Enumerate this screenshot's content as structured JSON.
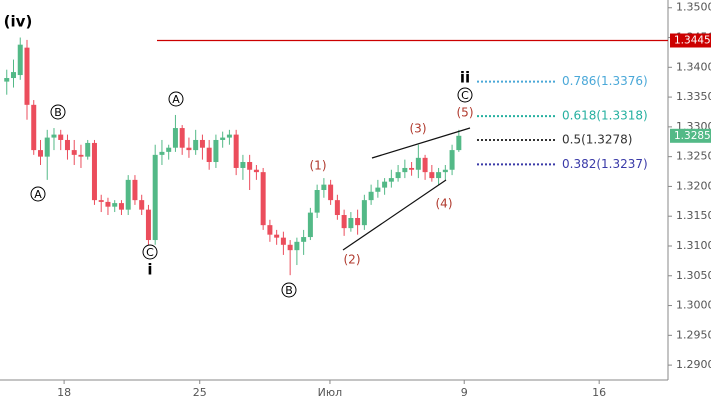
{
  "chart_data": {
    "type": "candlestick",
    "x": [
      1,
      2,
      3,
      4,
      5,
      6,
      7,
      8,
      9,
      10,
      11,
      12,
      13,
      14,
      15,
      16,
      17,
      18,
      19,
      20,
      21,
      22,
      23,
      24,
      25,
      26,
      27,
      28,
      29,
      30,
      31,
      32,
      33,
      34,
      35,
      36,
      37,
      38,
      39,
      40,
      41,
      42,
      43,
      44,
      45,
      46,
      47,
      48,
      49,
      50,
      51,
      52,
      53,
      54,
      55,
      56,
      57,
      58,
      59,
      60,
      61,
      62,
      63,
      64,
      65,
      66,
      67,
      68
    ],
    "open": [
      1.3376,
      1.3382,
      1.3387,
      1.3433,
      1.3337,
      1.3261,
      1.325,
      1.3282,
      1.3287,
      1.3278,
      1.3261,
      1.3253,
      1.325,
      1.3273,
      1.3177,
      1.3174,
      1.3166,
      1.3172,
      1.3161,
      1.3211,
      1.3177,
      1.3161,
      1.311,
      1.3253,
      1.3258,
      1.3265,
      1.3298,
      1.3265,
      1.3261,
      1.3278,
      1.3265,
      1.3241,
      1.3278,
      1.3282,
      1.3287,
      1.3231,
      1.3241,
      1.3228,
      1.3224,
      1.3135,
      1.3119,
      1.3114,
      1.3102,
      1.3093,
      1.3107,
      1.3115,
      1.3156,
      1.3194,
      1.3203,
      1.3177,
      1.3152,
      1.313,
      1.3147,
      1.3135,
      1.3177,
      1.3191,
      1.3198,
      1.3208,
      1.3214,
      1.3224,
      1.3231,
      1.3228,
      1.3248,
      1.3224,
      1.3214,
      1.3224,
      1.3228,
      1.3261
    ],
    "high": [
      1.3396,
      1.3413,
      1.345,
      1.3446,
      1.3345,
      1.3278,
      1.3295,
      1.3298,
      1.3295,
      1.3287,
      1.3278,
      1.327,
      1.3278,
      1.3278,
      1.3186,
      1.3181,
      1.3177,
      1.3177,
      1.3219,
      1.3219,
      1.3186,
      1.3169,
      1.327,
      1.3278,
      1.327,
      1.332,
      1.3303,
      1.3282,
      1.3295,
      1.3287,
      1.3278,
      1.3287,
      1.3292,
      1.3295,
      1.3295,
      1.3253,
      1.3253,
      1.3236,
      1.3231,
      1.3144,
      1.3127,
      1.3124,
      1.311,
      1.3114,
      1.3127,
      1.3164,
      1.3203,
      1.3214,
      1.3211,
      1.3186,
      1.3161,
      1.3157,
      1.3161,
      1.3186,
      1.3203,
      1.3211,
      1.3214,
      1.3228,
      1.3236,
      1.3245,
      1.3241,
      1.327,
      1.3253,
      1.3236,
      1.3231,
      1.3236,
      1.327,
      1.3295
    ],
    "low": [
      1.3354,
      1.3366,
      1.3379,
      1.3312,
      1.3253,
      1.3236,
      1.3211,
      1.3261,
      1.3261,
      1.3245,
      1.3236,
      1.3231,
      1.3245,
      1.3169,
      1.3157,
      1.3152,
      1.3157,
      1.3152,
      1.3152,
      1.3169,
      1.3152,
      1.3097,
      1.3102,
      1.3236,
      1.3245,
      1.3258,
      1.3253,
      1.3248,
      1.3253,
      1.3245,
      1.3228,
      1.3231,
      1.3265,
      1.327,
      1.3219,
      1.3211,
      1.3194,
      1.3211,
      1.3127,
      1.3107,
      1.3102,
      1.3085,
      1.3051,
      1.3068,
      1.3085,
      1.311,
      1.3147,
      1.3181,
      1.3169,
      1.3144,
      1.3117,
      1.3124,
      1.3119,
      1.3127,
      1.3169,
      1.3181,
      1.3186,
      1.3198,
      1.3208,
      1.3214,
      1.3218,
      1.3214,
      1.3211,
      1.3208,
      1.3203,
      1.3211,
      1.3219,
      1.3258
    ],
    "close": [
      1.3382,
      1.3392,
      1.3438,
      1.3337,
      1.3261,
      1.325,
      1.3282,
      1.3287,
      1.3278,
      1.3261,
      1.3253,
      1.325,
      1.3273,
      1.3177,
      1.3174,
      1.3166,
      1.3172,
      1.3161,
      1.3211,
      1.3177,
      1.3161,
      1.311,
      1.3253,
      1.3258,
      1.3265,
      1.3298,
      1.3265,
      1.3261,
      1.3278,
      1.3265,
      1.3241,
      1.3278,
      1.3282,
      1.3287,
      1.3231,
      1.3241,
      1.3228,
      1.3224,
      1.3135,
      1.3119,
      1.3114,
      1.3102,
      1.3093,
      1.3107,
      1.3115,
      1.3156,
      1.3194,
      1.3203,
      1.3177,
      1.3152,
      1.313,
      1.3147,
      1.3135,
      1.3177,
      1.3191,
      1.3198,
      1.3208,
      1.3214,
      1.3224,
      1.3231,
      1.3228,
      1.3248,
      1.3224,
      1.3214,
      1.3224,
      1.3228,
      1.3261,
      1.3285
    ],
    "up_color": "#53b987",
    "down_color": "#eb4d5c",
    "xlim": [
      0,
      99
    ],
    "ylim": [
      1.2875,
      1.3513
    ],
    "xticks": [
      {
        "value": 9.5,
        "label": "18"
      },
      {
        "value": 29.6,
        "label": "25"
      },
      {
        "value": 48.9,
        "label": "Июл"
      },
      {
        "value": 68.8,
        "label": "9"
      },
      {
        "value": 88.8,
        "label": "16"
      }
    ],
    "yticks": [
      {
        "value": 1.29,
        "label": "1.2900"
      },
      {
        "value": 1.295,
        "label": "1.2950"
      },
      {
        "value": 1.3,
        "label": "1.3000"
      },
      {
        "value": 1.305,
        "label": "1.3050"
      },
      {
        "value": 1.31,
        "label": "1.3100"
      },
      {
        "value": 1.315,
        "label": "1.3150"
      },
      {
        "value": 1.32,
        "label": "1.3200"
      },
      {
        "value": 1.325,
        "label": "1.3250"
      },
      {
        "value": 1.33,
        "label": "1.3300"
      },
      {
        "value": 1.335,
        "label": "1.3350"
      },
      {
        "value": 1.34,
        "label": "1.3400"
      },
      {
        "value": 1.345,
        "label": "1.3450"
      },
      {
        "value": 1.35,
        "label": "1.3500"
      }
    ],
    "hline": {
      "value": 1.3445,
      "color": "#cc0000"
    },
    "last_price": {
      "value": 1.3285,
      "color": "#53b987"
    },
    "fib_levels": [
      {
        "label": "0.786(1.3376)",
        "value": 1.3376,
        "color": "#4aa8d8"
      },
      {
        "label": "0.618(1.3318)",
        "value": 1.3318,
        "color": "#26b0a0"
      },
      {
        "label": "0.5(1.3278)",
        "value": 1.3278,
        "color": "#333333"
      },
      {
        "label": "0.382(1.3237)",
        "value": 1.3237,
        "color": "#3a3aa8"
      }
    ],
    "wave_labels": [
      "(iv)",
      "A",
      "B",
      "C",
      "i",
      "A",
      "B",
      "(1)",
      "(2)",
      "(3)",
      "(4)",
      "(5)",
      "ii",
      "C"
    ]
  }
}
